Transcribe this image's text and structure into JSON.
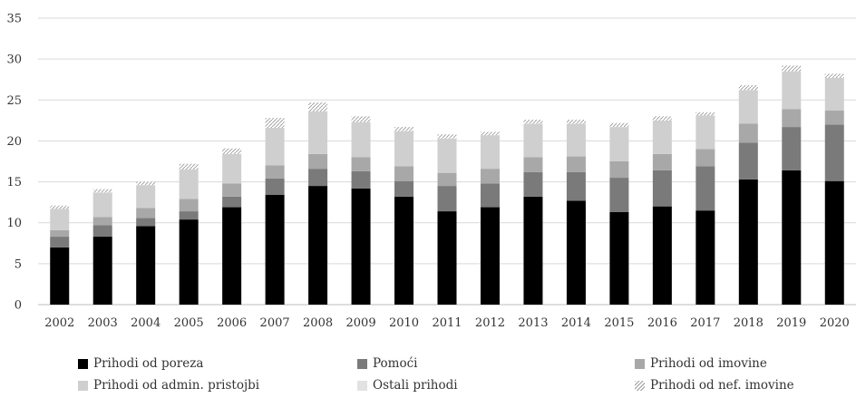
{
  "chart_data": {
    "type": "bar",
    "stacked": true,
    "categories": [
      "2002",
      "2003",
      "2004",
      "2005",
      "2006",
      "2007",
      "2008",
      "2009",
      "2010",
      "2011",
      "2012",
      "2013",
      "2014",
      "2015",
      "2016",
      "2017",
      "2018",
      "2019",
      "2020"
    ],
    "series": [
      {
        "name": "Prihodi od poreza",
        "color": "#000000",
        "values": [
          7.0,
          8.3,
          9.6,
          10.4,
          11.9,
          13.4,
          14.5,
          14.2,
          13.2,
          11.4,
          11.9,
          13.2,
          12.7,
          11.3,
          12.0,
          11.5,
          15.3,
          16.4,
          15.1
        ]
      },
      {
        "name": "Pomoći",
        "color": "#7a7a7a",
        "values": [
          1.3,
          1.4,
          1.0,
          1.0,
          1.3,
          2.0,
          2.1,
          2.1,
          1.9,
          3.1,
          2.9,
          3.0,
          3.5,
          4.2,
          4.4,
          5.4,
          4.5,
          5.3,
          6.9
        ]
      },
      {
        "name": "Prihodi od imovine",
        "color": "#a8a8a8",
        "values": [
          0.8,
          1.0,
          1.2,
          1.5,
          1.6,
          1.6,
          1.8,
          1.7,
          1.8,
          1.6,
          1.8,
          1.8,
          1.9,
          2.0,
          2.0,
          2.1,
          2.3,
          2.2,
          1.7
        ]
      },
      {
        "name": "Prihodi od admin. pristojbi",
        "color": "#cfcfcf",
        "values": [
          2.6,
          3.0,
          2.8,
          3.6,
          3.6,
          4.6,
          5.2,
          4.3,
          4.3,
          4.2,
          4.1,
          4.1,
          4.0,
          4.2,
          4.1,
          4.1,
          4.1,
          4.6,
          4.0
        ]
      },
      {
        "name": "Ostali prihodi",
        "color": "#e2e2e2",
        "values": [
          0.0,
          0.0,
          0.0,
          0.0,
          0.0,
          0.0,
          0.0,
          0.0,
          0.0,
          0.0,
          0.0,
          0.0,
          0.0,
          0.0,
          0.0,
          0.0,
          0.0,
          0.0,
          0.0
        ]
      },
      {
        "name": "Prihodi od nef. imovine",
        "color": "hatch",
        "values": [
          0.4,
          0.4,
          0.4,
          0.7,
          0.7,
          1.2,
          1.1,
          0.7,
          0.5,
          0.5,
          0.4,
          0.5,
          0.5,
          0.5,
          0.5,
          0.4,
          0.6,
          0.7,
          0.5
        ]
      }
    ],
    "xlabel": "",
    "ylabel": "",
    "ylim": [
      0,
      35
    ],
    "yticks": [
      "0",
      "5",
      "10",
      "15",
      "20",
      "25",
      "30",
      "35"
    ],
    "grid": true,
    "legend_position": "bottom"
  }
}
